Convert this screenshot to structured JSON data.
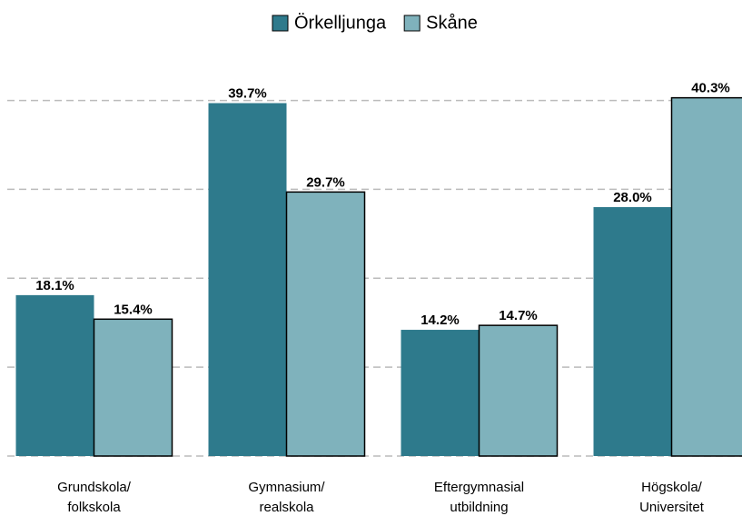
{
  "chart_data": {
    "type": "bar",
    "categories": [
      "Grundskola/\nfolkskola",
      "Gymnasium/\nrealskola",
      "Eftergymnasial\nutbildning",
      "Högskola/\nUniversitet"
    ],
    "series": [
      {
        "name": "Örkelljunga",
        "color": "#2e7a8c",
        "values": [
          18.1,
          39.7,
          14.2,
          28.0
        ],
        "value_labels": [
          "18.1%",
          "39.7%",
          "14.2%",
          "28.0%"
        ]
      },
      {
        "name": "Skåne",
        "color": "#7fb2bc",
        "edgecolor": "#000000",
        "values": [
          15.4,
          29.7,
          14.7,
          40.3
        ],
        "value_labels": [
          "15.4%",
          "29.7%",
          "14.7%",
          "40.3%"
        ]
      }
    ],
    "ylim": [
      0,
      42
    ],
    "yticks": [
      0,
      10,
      20,
      30,
      40
    ],
    "grid": true
  }
}
